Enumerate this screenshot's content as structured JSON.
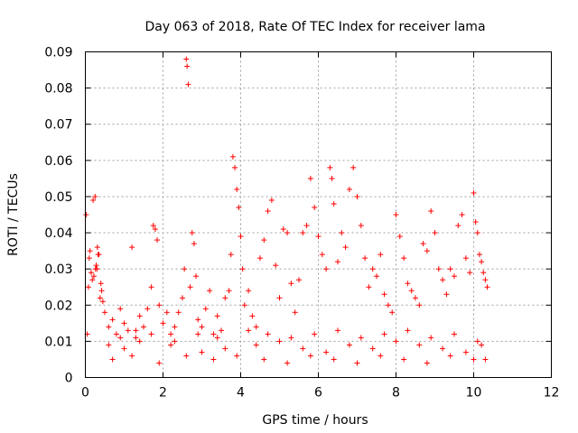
{
  "chart_data": {
    "type": "scatter",
    "title": "Day 063 of 2018, Rate Of TEC Index for receiver lama",
    "xlabel": "GPS time / hours",
    "ylabel": "ROTI / TECUs",
    "xlim": [
      0,
      12
    ],
    "ylim": [
      0,
      0.09
    ],
    "xticks": [
      0,
      2,
      4,
      6,
      8,
      10,
      12
    ],
    "xtick_labels": [
      "0",
      "2",
      "4",
      "6",
      "8",
      "10",
      "12"
    ],
    "yticks": [
      0,
      0.01,
      0.02,
      0.03,
      0.04,
      0.05,
      0.06,
      0.07,
      0.08,
      0.09
    ],
    "ytick_labels": [
      "0",
      "0.01",
      "0.02",
      "0.03",
      "0.04",
      "0.05",
      "0.06",
      "0.07",
      "0.08",
      "0.09"
    ],
    "grid": true,
    "marker": "+",
    "color": "#ff0000",
    "series": [
      {
        "name": "ROTI",
        "x": [
          0.02,
          0.1,
          0.15,
          0.2,
          0.25,
          0.3,
          0.35,
          0.4,
          0.45,
          0.08,
          0.12,
          0.22,
          0.28,
          0.33,
          0.38,
          0.18,
          0.26,
          0.31,
          0.05,
          0.42,
          0.5,
          0.6,
          0.7,
          0.8,
          0.9,
          1.0,
          1.1,
          1.2,
          1.3,
          1.4,
          1.5,
          1.6,
          1.7,
          1.75,
          1.8,
          1.85,
          1.9,
          2.0,
          2.1,
          2.2,
          2.3,
          2.4,
          2.5,
          2.55,
          2.6,
          2.62,
          2.65,
          2.7,
          2.75,
          2.8,
          2.85,
          2.9,
          3.0,
          3.1,
          3.2,
          3.3,
          3.4,
          3.5,
          3.6,
          3.7,
          3.75,
          3.8,
          3.85,
          3.9,
          3.95,
          4.0,
          4.05,
          4.1,
          4.2,
          4.3,
          4.4,
          4.5,
          4.6,
          4.7,
          4.8,
          4.9,
          5.0,
          5.1,
          5.2,
          5.3,
          5.4,
          5.5,
          5.6,
          5.7,
          5.8,
          5.9,
          6.0,
          6.1,
          6.2,
          6.3,
          6.35,
          6.4,
          6.5,
          6.6,
          6.7,
          6.8,
          6.9,
          7.0,
          7.1,
          7.2,
          7.3,
          7.4,
          7.5,
          7.6,
          7.7,
          7.8,
          7.9,
          8.0,
          8.1,
          8.2,
          8.3,
          8.4,
          8.5,
          8.6,
          8.7,
          8.8,
          8.9,
          9.0,
          9.1,
          9.2,
          9.3,
          9.4,
          9.5,
          9.6,
          9.7,
          9.8,
          9.9,
          10.0,
          10.05,
          10.1,
          10.15,
          10.2,
          10.25,
          10.3,
          10.35,
          0.6,
          1.0,
          1.4,
          2.2,
          3.0,
          3.6,
          4.4,
          5.0,
          5.6,
          6.2,
          6.8,
          7.4,
          8.0,
          8.6,
          9.2,
          9.8,
          10.2,
          0.9,
          1.3,
          1.7,
          2.3,
          2.9,
          3.4,
          4.2,
          4.7,
          5.3,
          5.9,
          6.5,
          7.1,
          7.7,
          8.3,
          8.9,
          9.5,
          10.1,
          0.7,
          1.2,
          1.9,
          2.6,
          3.3,
          3.9,
          4.6,
          5.2,
          5.8,
          6.4,
          7.0,
          7.6,
          8.2,
          8.8,
          9.4,
          10.0,
          10.3
        ],
        "y": [
          0.045,
          0.033,
          0.029,
          0.049,
          0.05,
          0.03,
          0.034,
          0.026,
          0.021,
          0.025,
          0.035,
          0.028,
          0.031,
          0.034,
          0.022,
          0.027,
          0.03,
          0.036,
          0.012,
          0.024,
          0.018,
          0.014,
          0.016,
          0.012,
          0.019,
          0.015,
          0.013,
          0.036,
          0.011,
          0.017,
          0.014,
          0.019,
          0.025,
          0.042,
          0.041,
          0.038,
          0.02,
          0.015,
          0.018,
          0.012,
          0.014,
          0.018,
          0.022,
          0.03,
          0.088,
          0.086,
          0.081,
          0.025,
          0.04,
          0.037,
          0.028,
          0.016,
          0.014,
          0.019,
          0.024,
          0.012,
          0.017,
          0.013,
          0.022,
          0.024,
          0.034,
          0.061,
          0.058,
          0.052,
          0.047,
          0.039,
          0.03,
          0.02,
          0.024,
          0.017,
          0.014,
          0.033,
          0.038,
          0.046,
          0.049,
          0.031,
          0.022,
          0.041,
          0.04,
          0.026,
          0.018,
          0.027,
          0.04,
          0.042,
          0.055,
          0.047,
          0.039,
          0.034,
          0.03,
          0.058,
          0.055,
          0.048,
          0.032,
          0.04,
          0.036,
          0.052,
          0.058,
          0.05,
          0.042,
          0.033,
          0.025,
          0.03,
          0.028,
          0.034,
          0.023,
          0.02,
          0.018,
          0.045,
          0.039,
          0.033,
          0.026,
          0.024,
          0.022,
          0.02,
          0.037,
          0.035,
          0.046,
          0.04,
          0.03,
          0.027,
          0.023,
          0.03,
          0.028,
          0.042,
          0.045,
          0.033,
          0.029,
          0.051,
          0.043,
          0.04,
          0.034,
          0.032,
          0.029,
          0.027,
          0.025,
          0.009,
          0.008,
          0.01,
          0.009,
          0.007,
          0.008,
          0.009,
          0.01,
          0.008,
          0.007,
          0.009,
          0.008,
          0.01,
          0.009,
          0.008,
          0.007,
          0.009,
          0.011,
          0.013,
          0.012,
          0.01,
          0.012,
          0.011,
          0.013,
          0.012,
          0.011,
          0.012,
          0.013,
          0.011,
          0.012,
          0.013,
          0.011,
          0.012,
          0.01,
          0.005,
          0.006,
          0.004,
          0.006,
          0.005,
          0.006,
          0.005,
          0.004,
          0.006,
          0.005,
          0.004,
          0.006,
          0.005,
          0.004,
          0.006,
          0.005,
          0.005
        ]
      }
    ]
  }
}
